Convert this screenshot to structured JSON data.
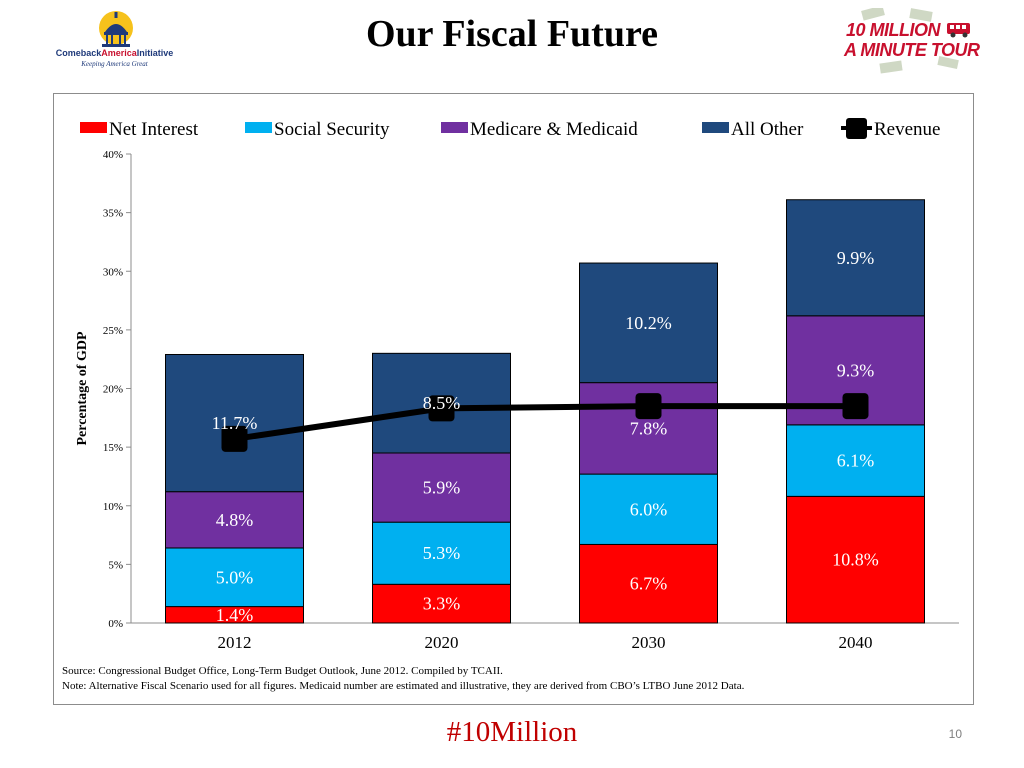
{
  "header": {
    "title": "Our Fiscal Future",
    "left_logo": {
      "name_part1": "Comeback",
      "name_part2": "America",
      "name_part3": "Initiative",
      "tagline": "Keeping America Great"
    },
    "right_logo": {
      "line1": "10 MILLION",
      "line2": "A MINUTE TOUR"
    }
  },
  "chart_data": {
    "type": "bar",
    "stacked": true,
    "categories": [
      "2012",
      "2020",
      "2030",
      "2040"
    ],
    "ylabel": "Percentage of GDP",
    "xlabel": "",
    "ylim": [
      0,
      40
    ],
    "yticks": [
      "0%",
      "5%",
      "10%",
      "15%",
      "20%",
      "25%",
      "30%",
      "35%",
      "40%"
    ],
    "grid": false,
    "legend_position": "top",
    "series": [
      {
        "name": "Net Interest",
        "color": "#ff0000",
        "values": [
          1.4,
          3.3,
          6.7,
          10.8
        ],
        "labels": [
          "1.4%",
          "3.3%",
          "6.7%",
          "10.8%"
        ]
      },
      {
        "name": "Social Security",
        "color": "#00b0f0",
        "values": [
          5.0,
          5.3,
          6.0,
          6.1
        ],
        "labels": [
          "5.0%",
          "5.3%",
          "6.0%",
          "6.1%"
        ]
      },
      {
        "name": "Medicare & Medicaid",
        "color": "#7030a0",
        "values": [
          4.8,
          5.9,
          7.8,
          9.3
        ],
        "labels": [
          "4.8%",
          "5.9%",
          "7.8%",
          "9.3%"
        ]
      },
      {
        "name": "All Other",
        "color": "#1f497d",
        "values": [
          11.7,
          8.5,
          10.2,
          9.9
        ],
        "labels": [
          "11.7%",
          "8.5%",
          "10.2%",
          "9.9%"
        ]
      }
    ],
    "line_series": {
      "name": "Revenue",
      "color": "#000000",
      "values": [
        15.7,
        18.3,
        18.5,
        18.5
      ]
    }
  },
  "notes": {
    "source": "Source: Congressional Budget Office, Long-Term Budget Outlook, June 2012. Compiled by TCAII.",
    "note": "Note: Alternative Fiscal Scenario used for all figures. Medicaid number are estimated and illustrative, they are derived from CBO’s LTBO June 2012 Data."
  },
  "footer": {
    "hashtag": "#10Million",
    "page_number": "10"
  }
}
